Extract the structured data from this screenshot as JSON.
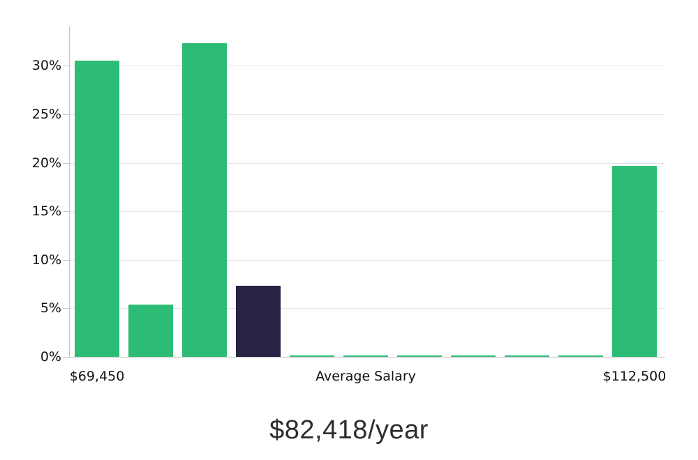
{
  "chart_data": {
    "type": "bar",
    "title": "$82,418/year",
    "values": [
      30.5,
      5.4,
      32.3,
      7.3,
      0.15,
      0.15,
      0.15,
      0.15,
      0.15,
      0.15,
      19.7
    ],
    "bar_colors": [
      "green",
      "green",
      "green",
      "navy",
      "green",
      "green",
      "green",
      "green",
      "green",
      "green",
      "green"
    ],
    "highlight_bar_index": 3,
    "x_tick_labels": [
      {
        "label": "$69,450",
        "bar_index": 0
      },
      {
        "label": "Average Salary",
        "bar_index": 5
      },
      {
        "label": "$112,500",
        "bar_index": 10
      }
    ],
    "y_ticks": [
      {
        "value": 0,
        "label": "0%"
      },
      {
        "value": 5,
        "label": "5%"
      },
      {
        "value": 10,
        "label": "10%"
      },
      {
        "value": 15,
        "label": "15%"
      },
      {
        "value": 20,
        "label": "20%"
      },
      {
        "value": 25,
        "label": "25%"
      },
      {
        "value": 30,
        "label": "30%"
      }
    ],
    "ylim": [
      0,
      33.9
    ],
    "grid": "horizontal",
    "legend": "none"
  },
  "colors": {
    "bar_green": "#2dbc76",
    "bar_navy": "#272345",
    "gridline": "#e4e4e4",
    "axis_line": "#c2c2c2",
    "tick_text": "#111111",
    "title_text": "#2e2e2e"
  }
}
